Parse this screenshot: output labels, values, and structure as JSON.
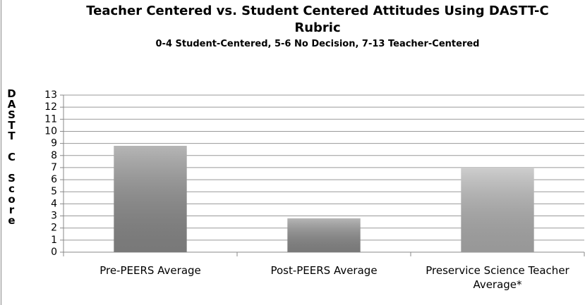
{
  "chart_data": {
    "type": "bar",
    "title": "Teacher Centered vs. Student Centered Attitudes Using DASTT-C Rubric",
    "subtitle": "0-4 Student-Centered, 5-6 No Decision, 7-13 Teacher-Centered",
    "y_label": "DASTT C Score",
    "categories": [
      "Pre-PEERS Average",
      "Post-PEERS Average",
      "Preservice Science Teacher Average*"
    ],
    "values": [
      8.8,
      2.8,
      7.0
    ],
    "colors": [
      "#8e8e8e",
      "#8e8e8e",
      "#b3b3b3"
    ],
    "ylim": [
      0,
      13
    ],
    "yticks": [
      0,
      1,
      2,
      3,
      4,
      5,
      6,
      7,
      8,
      9,
      10,
      11,
      12,
      13
    ],
    "grid": true
  }
}
